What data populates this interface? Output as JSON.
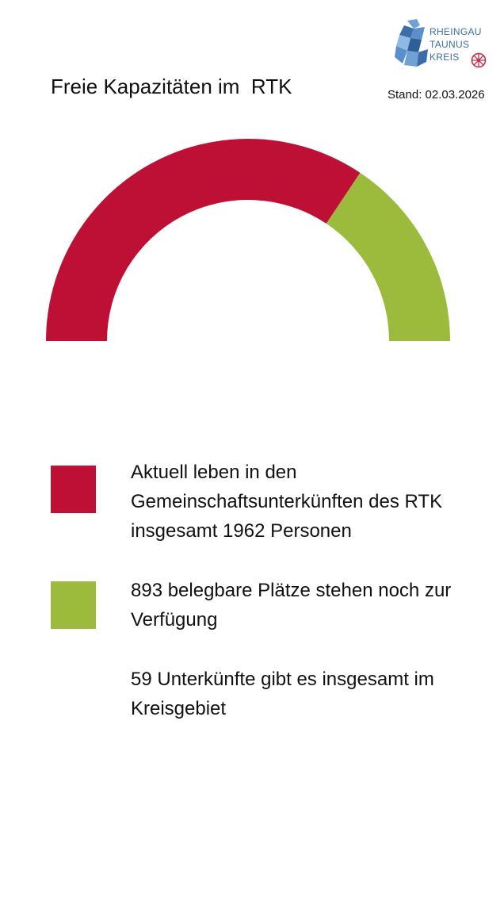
{
  "header": {
    "title": "Freie Kapazitäten im  RTK",
    "stand": "Stand: 02.03.2026"
  },
  "logo": {
    "lines": [
      "RHEINGAU",
      "TAUNUS",
      "KREIS"
    ]
  },
  "colors": {
    "occupied": "#BE1034",
    "free": "#9CBB3C",
    "logo": "#3B6EA8"
  },
  "chart_data": {
    "type": "pie",
    "style": "half-donut",
    "categories": [
      "Personen in Gemeinschaftsunterkünften",
      "Freie belegbare Plätze"
    ],
    "values": [
      1962,
      893
    ],
    "colors": [
      "#BE1034",
      "#9CBB3C"
    ]
  },
  "legend": [
    {
      "color": "#BE1034",
      "text": "Aktuell leben in den Gemeinschaftsunterkünften des RTK insgesamt 1962 Personen"
    },
    {
      "color": "#9CBB3C",
      "text": "893 belegbare Plätze stehen noch zur Verfügung"
    }
  ],
  "note": "59 Unterkünfte gibt es insgesamt im Kreisgebiet"
}
